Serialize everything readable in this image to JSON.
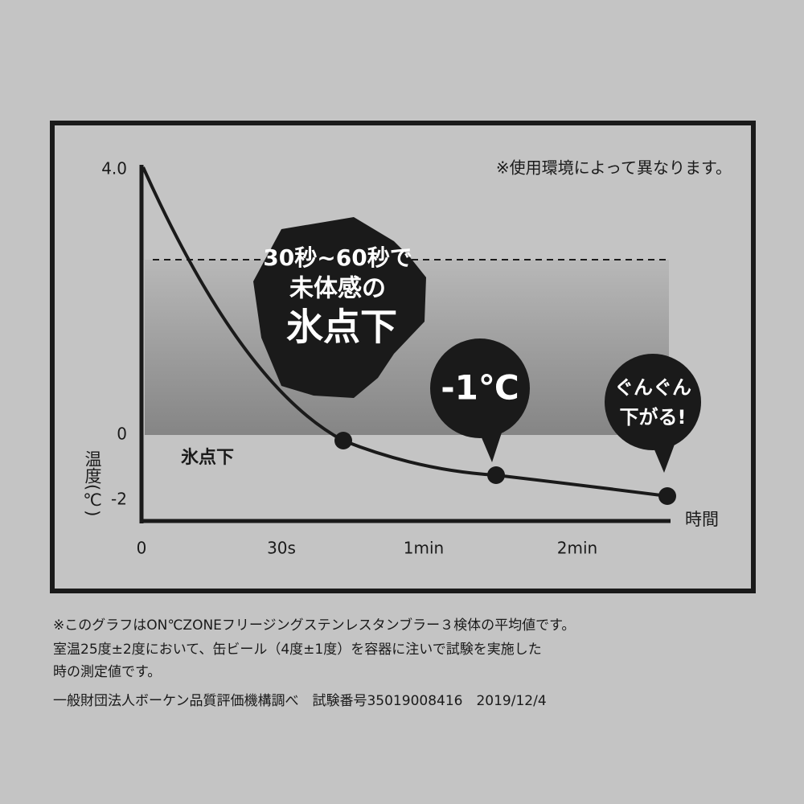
{
  "note": "※使用環境によって異なります。",
  "y_axis": {
    "label": "温度(℃)",
    "ticks": [
      "4.0",
      "0",
      "-2"
    ]
  },
  "x_axis": {
    "label": "時間",
    "ticks": [
      "0",
      "30s",
      "1min",
      "2min"
    ]
  },
  "band_label": "氷点下",
  "callouts": [
    {
      "lines": [
        "30秒~60秒で",
        "未体感の",
        "氷点下"
      ]
    },
    {
      "lines": [
        "-1℃"
      ]
    },
    {
      "lines": [
        "ぐんぐん",
        "下がる!"
      ]
    }
  ],
  "footnotes": [
    "※このグラフはON℃ZONEフリージングステンレスタンブラー３検体の平均値です。",
    "室温25度±2度において、缶ビール（4度±1度）を容器に注いで試験を実施した",
    "時の測定値です。",
    "一般財団法人ボーケン品質評価機構調べ　試験番号35019008416　2019/12/4"
  ]
}
